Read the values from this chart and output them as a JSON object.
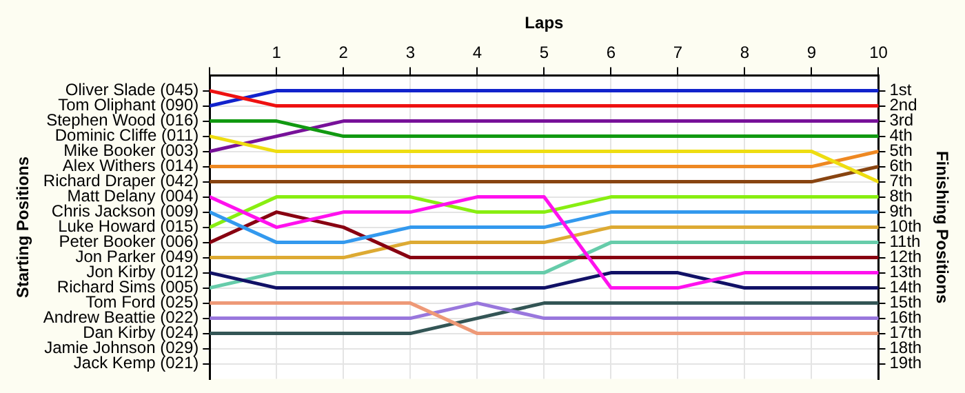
{
  "chart_data": {
    "type": "line",
    "xlabel": "Laps",
    "ylabel": "Finishing Positions",
    "annotations": [
      "Starting Positions"
    ],
    "x": [
      0,
      1,
      2,
      3,
      4,
      5,
      6,
      7,
      8,
      9,
      10
    ],
    "xlim": [
      0,
      10
    ],
    "xticks": [
      {
        "value": 0,
        "label": null
      },
      1,
      2,
      3,
      4,
      5,
      6,
      7,
      8,
      9,
      10
    ],
    "ylim": [
      20,
      0
    ],
    "yticks": [
      {
        "value": 1,
        "label": "1st"
      },
      {
        "value": 2,
        "label": "2nd"
      },
      {
        "value": 3,
        "label": "3rd"
      },
      {
        "value": 4,
        "label": "4th"
      },
      {
        "value": 5,
        "label": "5th"
      },
      {
        "value": 6,
        "label": "6th"
      },
      {
        "value": 7,
        "label": "7th"
      },
      {
        "value": 8,
        "label": "8th"
      },
      {
        "value": 9,
        "label": "9th"
      },
      {
        "value": 10,
        "label": "10th"
      },
      {
        "value": 11,
        "label": "11th"
      },
      {
        "value": 12,
        "label": "12th"
      },
      {
        "value": 13,
        "label": "13th"
      },
      {
        "value": 14,
        "label": "14th"
      },
      {
        "value": 15,
        "label": "15th"
      },
      {
        "value": 16,
        "label": "16th"
      },
      {
        "value": 17,
        "label": "17th"
      },
      {
        "value": 18,
        "label": "18th"
      },
      {
        "value": 19,
        "label": "19th"
      }
    ],
    "grid": true,
    "marker": "none",
    "line_style": "solid",
    "series": [
      {
        "name": "Oliver Slade (045)",
        "color": "#ee1111",
        "values": [
          1,
          2,
          2,
          2,
          2,
          2,
          2,
          2,
          2,
          2,
          2
        ]
      },
      {
        "name": "Tom Oliphant (090)",
        "color": "#1122cc",
        "values": [
          2,
          1,
          1,
          1,
          1,
          1,
          1,
          1,
          1,
          1,
          1
        ]
      },
      {
        "name": "Stephen Wood (016)",
        "color": "#119911",
        "values": [
          3,
          3,
          4,
          4,
          4,
          4,
          4,
          4,
          4,
          4,
          4
        ]
      },
      {
        "name": "Dominic Cliffe (011)",
        "color": "#eedd11",
        "values": [
          4,
          5,
          5,
          5,
          5,
          5,
          5,
          5,
          5,
          5,
          7
        ]
      },
      {
        "name": "Mike Booker (003)",
        "color": "#771199",
        "values": [
          5,
          4,
          3,
          3,
          3,
          3,
          3,
          3,
          3,
          3,
          3
        ]
      },
      {
        "name": "Alex Withers (014)",
        "color": "#ee8822",
        "values": [
          6,
          6,
          6,
          6,
          6,
          6,
          6,
          6,
          6,
          6,
          5
        ]
      },
      {
        "name": "Richard Draper (042)",
        "color": "#884411",
        "values": [
          7,
          7,
          7,
          7,
          7,
          7,
          7,
          7,
          7,
          7,
          6
        ]
      },
      {
        "name": "Matt Delany (004)",
        "color": "#ff11ee",
        "values": [
          8,
          10,
          9,
          9,
          8,
          8,
          14,
          14,
          13,
          13,
          13
        ]
      },
      {
        "name": "Chris Jackson (009)",
        "color": "#3399ee",
        "values": [
          9,
          11,
          11,
          10,
          10,
          10,
          9,
          9,
          9,
          9,
          9
        ]
      },
      {
        "name": "Luke Howard (015)",
        "color": "#88ee11",
        "values": [
          10,
          8,
          8,
          8,
          9,
          9,
          8,
          8,
          8,
          8,
          8
        ]
      },
      {
        "name": "Peter Booker (006)",
        "color": "#880011",
        "values": [
          11,
          9,
          10,
          12,
          12,
          12,
          12,
          12,
          12,
          12,
          12
        ]
      },
      {
        "name": "Jon Parker (049)",
        "color": "#ddaa33",
        "values": [
          12,
          12,
          12,
          11,
          11,
          11,
          10,
          10,
          10,
          10,
          10
        ]
      },
      {
        "name": "Jon Kirby (012)",
        "color": "#111166",
        "values": [
          13,
          14,
          14,
          14,
          14,
          14,
          13,
          13,
          14,
          14,
          14
        ]
      },
      {
        "name": "Richard Sims (005)",
        "color": "#66ccaa",
        "values": [
          14,
          13,
          13,
          13,
          13,
          13,
          11,
          11,
          11,
          11,
          11
        ]
      },
      {
        "name": "Tom Ford (025)",
        "color": "#ee9977",
        "values": [
          15,
          15,
          15,
          15,
          17,
          17,
          17,
          17,
          17,
          17,
          17
        ]
      },
      {
        "name": "Andrew Beattie (022)",
        "color": "#9977dd",
        "values": [
          16,
          16,
          16,
          16,
          15,
          16,
          16,
          16,
          16,
          16,
          16
        ]
      },
      {
        "name": "Dan Kirby (024)",
        "color": "#335555",
        "values": [
          17,
          17,
          17,
          17,
          16,
          15,
          15,
          15,
          15,
          15,
          15
        ]
      },
      {
        "name": "Jamie Johnson (029)",
        "values": [
          null,
          null,
          null,
          null,
          null,
          null,
          null,
          null,
          null,
          null,
          null
        ]
      },
      {
        "name": "Jack Kemp (021)",
        "values": [
          null,
          null,
          null,
          null,
          null,
          null,
          null,
          null,
          null,
          null,
          null
        ]
      }
    ]
  }
}
